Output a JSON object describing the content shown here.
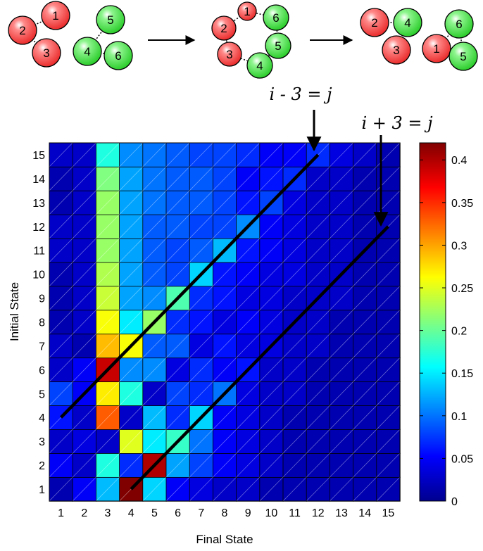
{
  "chart_data": {
    "type": "heatmap",
    "xlabel": "Final State",
    "ylabel": "Initial State",
    "x_ticks": [
      "1",
      "2",
      "3",
      "4",
      "5",
      "6",
      "7",
      "8",
      "9",
      "10",
      "11",
      "12",
      "13",
      "14",
      "15"
    ],
    "y_ticks": [
      "1",
      "2",
      "3",
      "4",
      "5",
      "6",
      "7",
      "8",
      "9",
      "10",
      "11",
      "12",
      "13",
      "14",
      "15"
    ],
    "colorbar": {
      "colormap": "jet",
      "range": [
        0,
        0.42
      ],
      "ticks": [
        "0",
        "0.05",
        "0.1",
        "0.15",
        "0.2",
        "0.25",
        "0.3",
        "0.35",
        "0.4"
      ]
    },
    "rows_initial_state": {
      "1": [
        0.02,
        0.05,
        0.13,
        0.42,
        0.14,
        0.05,
        0.04,
        0.03,
        0.03,
        0.02,
        0.02,
        0.02,
        0.02,
        0.02,
        0.02
      ],
      "2": [
        0.05,
        0.03,
        0.17,
        0.07,
        0.4,
        0.12,
        0.08,
        0.05,
        0.04,
        0.03,
        0.02,
        0.02,
        0.02,
        0.02,
        0.02
      ],
      "3": [
        0.03,
        0.04,
        0.03,
        0.25,
        0.15,
        0.18,
        0.1,
        0.05,
        0.04,
        0.03,
        0.02,
        0.02,
        0.02,
        0.02,
        0.02
      ],
      "4": [
        0.06,
        0.03,
        0.33,
        0.03,
        0.13,
        0.07,
        0.14,
        0.05,
        0.04,
        0.03,
        0.02,
        0.02,
        0.02,
        0.02,
        0.02
      ],
      "5": [
        0.08,
        0.05,
        0.27,
        0.17,
        0.03,
        0.08,
        0.07,
        0.1,
        0.04,
        0.03,
        0.03,
        0.02,
        0.02,
        0.02,
        0.02
      ],
      "6": [
        0.03,
        0.05,
        0.39,
        0.11,
        0.11,
        0.04,
        0.07,
        0.05,
        0.06,
        0.03,
        0.03,
        0.02,
        0.02,
        0.02,
        0.02
      ],
      "7": [
        0.03,
        0.02,
        0.29,
        0.26,
        0.09,
        0.09,
        0.04,
        0.06,
        0.04,
        0.04,
        0.03,
        0.03,
        0.02,
        0.02,
        0.02
      ],
      "8": [
        0.02,
        0.03,
        0.26,
        0.15,
        0.22,
        0.07,
        0.06,
        0.04,
        0.05,
        0.04,
        0.03,
        0.03,
        0.02,
        0.02,
        0.02
      ],
      "9": [
        0.02,
        0.03,
        0.24,
        0.12,
        0.11,
        0.19,
        0.07,
        0.06,
        0.04,
        0.04,
        0.03,
        0.03,
        0.03,
        0.02,
        0.02
      ],
      "10": [
        0.02,
        0.03,
        0.23,
        0.12,
        0.09,
        0.08,
        0.14,
        0.06,
        0.05,
        0.04,
        0.04,
        0.03,
        0.03,
        0.02,
        0.02
      ],
      "11": [
        0.03,
        0.03,
        0.22,
        0.12,
        0.09,
        0.08,
        0.09,
        0.13,
        0.06,
        0.05,
        0.04,
        0.03,
        0.03,
        0.02,
        0.02
      ],
      "12": [
        0.03,
        0.03,
        0.22,
        0.12,
        0.09,
        0.09,
        0.08,
        0.08,
        0.11,
        0.05,
        0.04,
        0.03,
        0.03,
        0.02,
        0.02
      ],
      "13": [
        0.02,
        0.03,
        0.22,
        0.12,
        0.1,
        0.09,
        0.09,
        0.08,
        0.06,
        0.08,
        0.04,
        0.03,
        0.03,
        0.02,
        0.02
      ],
      "14": [
        0.02,
        0.03,
        0.21,
        0.12,
        0.1,
        0.09,
        0.09,
        0.08,
        0.05,
        0.06,
        0.07,
        0.03,
        0.03,
        0.02,
        0.02
      ],
      "15": [
        0.03,
        0.03,
        0.17,
        0.11,
        0.1,
        0.09,
        0.08,
        0.08,
        0.07,
        0.05,
        0.05,
        0.07,
        0.04,
        0.03,
        0.02
      ]
    },
    "diagonal_lines": [
      {
        "label": "i - 3 = j"
      },
      {
        "label": "i + 3 = j"
      }
    ],
    "grid": true
  },
  "diagram": {
    "states": [
      {
        "nodes": [
          {
            "label": "2",
            "color": "red"
          },
          {
            "label": "1",
            "color": "red"
          },
          {
            "label": "3",
            "color": "red"
          },
          {
            "label": "4",
            "color": "green"
          },
          {
            "label": "5",
            "color": "green"
          },
          {
            "label": "6",
            "color": "green"
          }
        ]
      },
      {
        "nodes": [
          {
            "label": "1",
            "color": "red"
          },
          {
            "label": "6",
            "color": "green"
          },
          {
            "label": "2",
            "color": "red"
          },
          {
            "label": "5",
            "color": "green"
          },
          {
            "label": "3",
            "color": "red"
          },
          {
            "label": "4",
            "color": "green"
          }
        ]
      },
      {
        "nodes": [
          {
            "label": "2",
            "color": "red"
          },
          {
            "label": "4",
            "color": "green"
          },
          {
            "label": "3",
            "color": "red"
          },
          {
            "label": "6",
            "color": "green"
          },
          {
            "label": "1",
            "color": "red"
          },
          {
            "label": "5",
            "color": "green"
          }
        ]
      }
    ],
    "colors": {
      "red": "#f04040",
      "green": "#3cd03c"
    }
  }
}
